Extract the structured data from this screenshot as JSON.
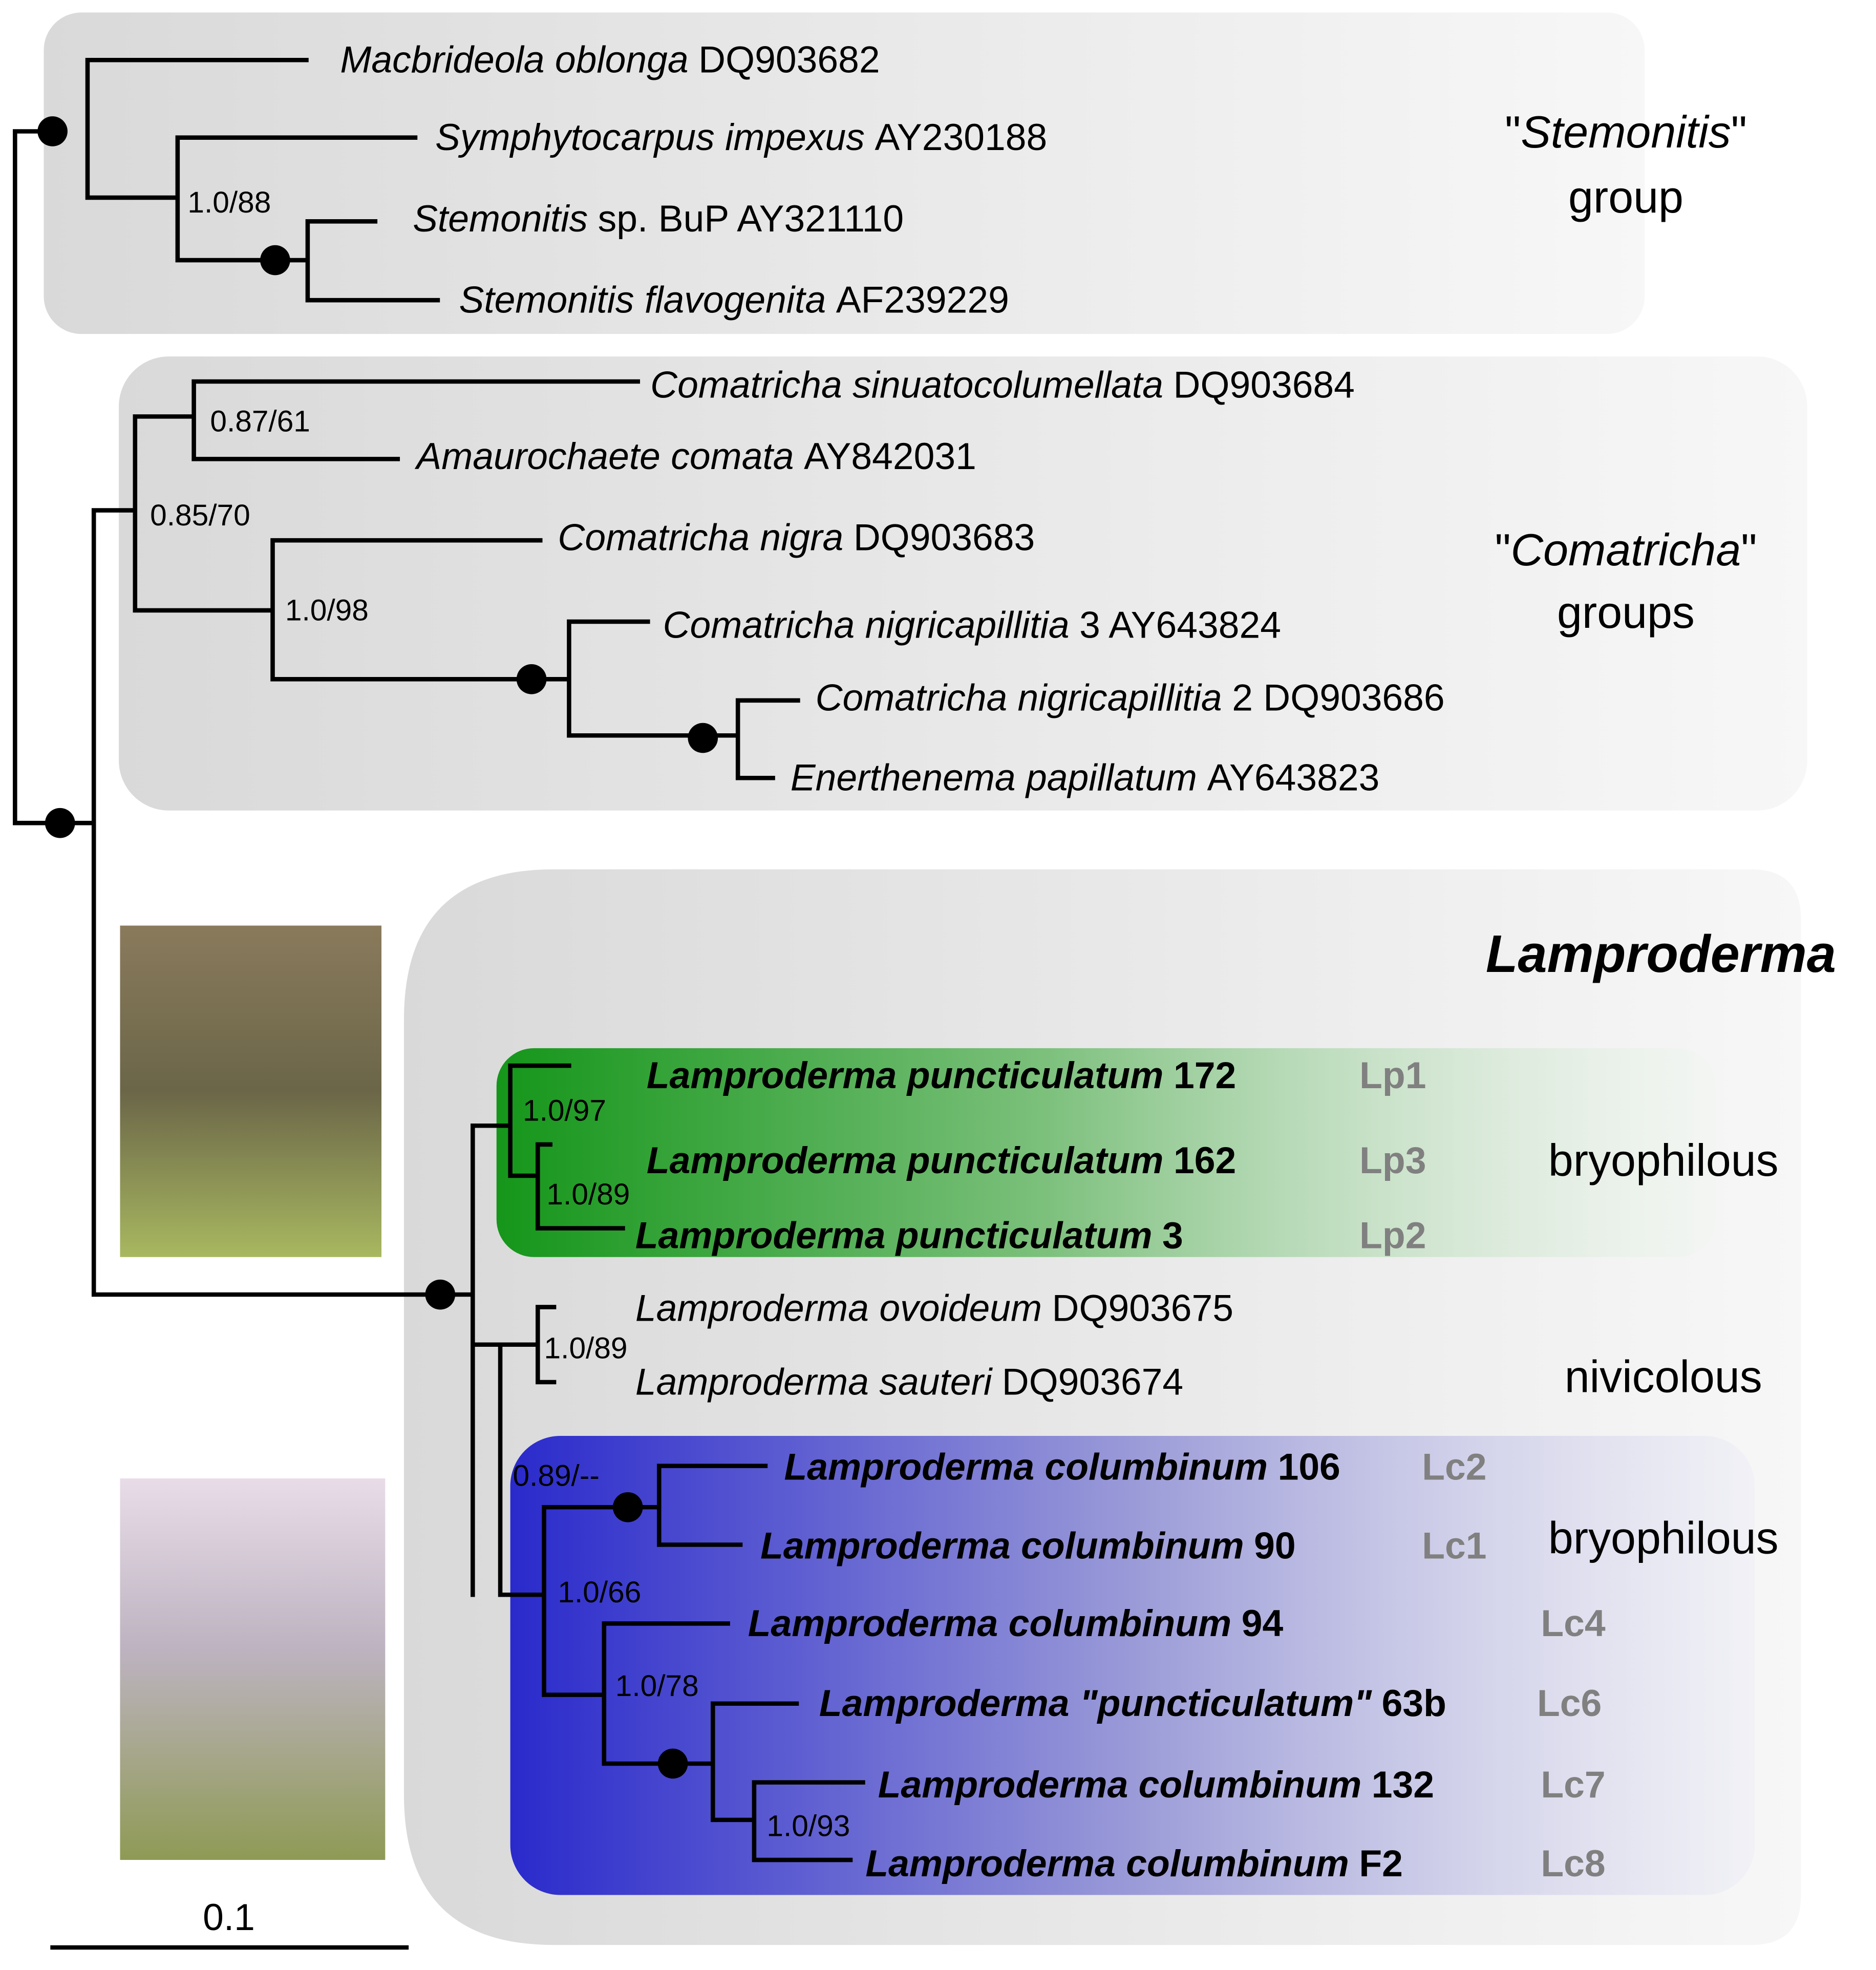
{
  "taxa": [
    {
      "italic": "Macbrideola oblonga",
      "plain": "DQ903682"
    },
    {
      "italic": "Symphytocarpus impexus",
      "plain": "AY230188"
    },
    {
      "italic": "Stemonitis",
      "plain": "sp. BuP AY321110"
    },
    {
      "italic": "Stemonitis flavogenita",
      "plain": "AF239229"
    },
    {
      "italic": "Comatricha sinuatocolumellata",
      "plain": "DQ903684"
    },
    {
      "italic": "Amaurochaete comata",
      "plain": "AY842031"
    },
    {
      "italic": "Comatricha nigra",
      "plain": "DQ903683"
    },
    {
      "italic": "Comatricha nigricapillitia",
      "plain": "3 AY643824"
    },
    {
      "italic": "Comatricha nigricapillitia",
      "plain": "2 DQ903686"
    },
    {
      "italic": "Enerthenema papillatum",
      "plain": "AY643823"
    },
    {
      "italic": "Lamproderma puncticulatum",
      "plain": "172"
    },
    {
      "italic": "Lamproderma puncticulatum",
      "plain": "162"
    },
    {
      "italic": "Lamproderma puncticulatum",
      "plain": "3"
    },
    {
      "italic": "Lamproderma ovoideum",
      "plain": "DQ903675"
    },
    {
      "italic": "Lamproderma sauteri",
      "plain": "DQ903674"
    },
    {
      "italic": "Lamproderma columbinum",
      "plain": "106"
    },
    {
      "italic": "Lamproderma columbinum",
      "plain": "90"
    },
    {
      "italic": "Lamproderma columbinum",
      "plain": "94"
    },
    {
      "italic": "Lamproderma \"puncticulatum\"",
      "plain": "63b"
    },
    {
      "italic": "Lamproderma columbinum",
      "plain": "132"
    },
    {
      "italic": "Lamproderma columbinum",
      "plain": "F2"
    }
  ],
  "codes": [
    "Lp1",
    "Lp3",
    "Lp2",
    "Lc2",
    "Lc1",
    "Lc4",
    "Lc6",
    "Lc7",
    "Lc8"
  ],
  "support": [
    "1.0/88",
    "0.87/61",
    "0.85/70",
    "1.0/98",
    "1.0/97",
    "1.0/89",
    "1.0/89",
    "0.89/--",
    "1.0/66",
    "1.0/78",
    "1.0/93"
  ],
  "groups": {
    "stemonitis": {
      "pre": "\"",
      "italic": "Stemonitis",
      "post": "\"",
      "line2": "group"
    },
    "comatricha": {
      "pre": "\"",
      "italic": "Comatricha",
      "post": "\"",
      "line2": "groups"
    },
    "lamproderma": "Lamproderma",
    "bryophilous_1": "bryophilous",
    "nivicolous": "nivicolous",
    "bryophilous_2": "bryophilous"
  },
  "scale_bar": "0.1"
}
